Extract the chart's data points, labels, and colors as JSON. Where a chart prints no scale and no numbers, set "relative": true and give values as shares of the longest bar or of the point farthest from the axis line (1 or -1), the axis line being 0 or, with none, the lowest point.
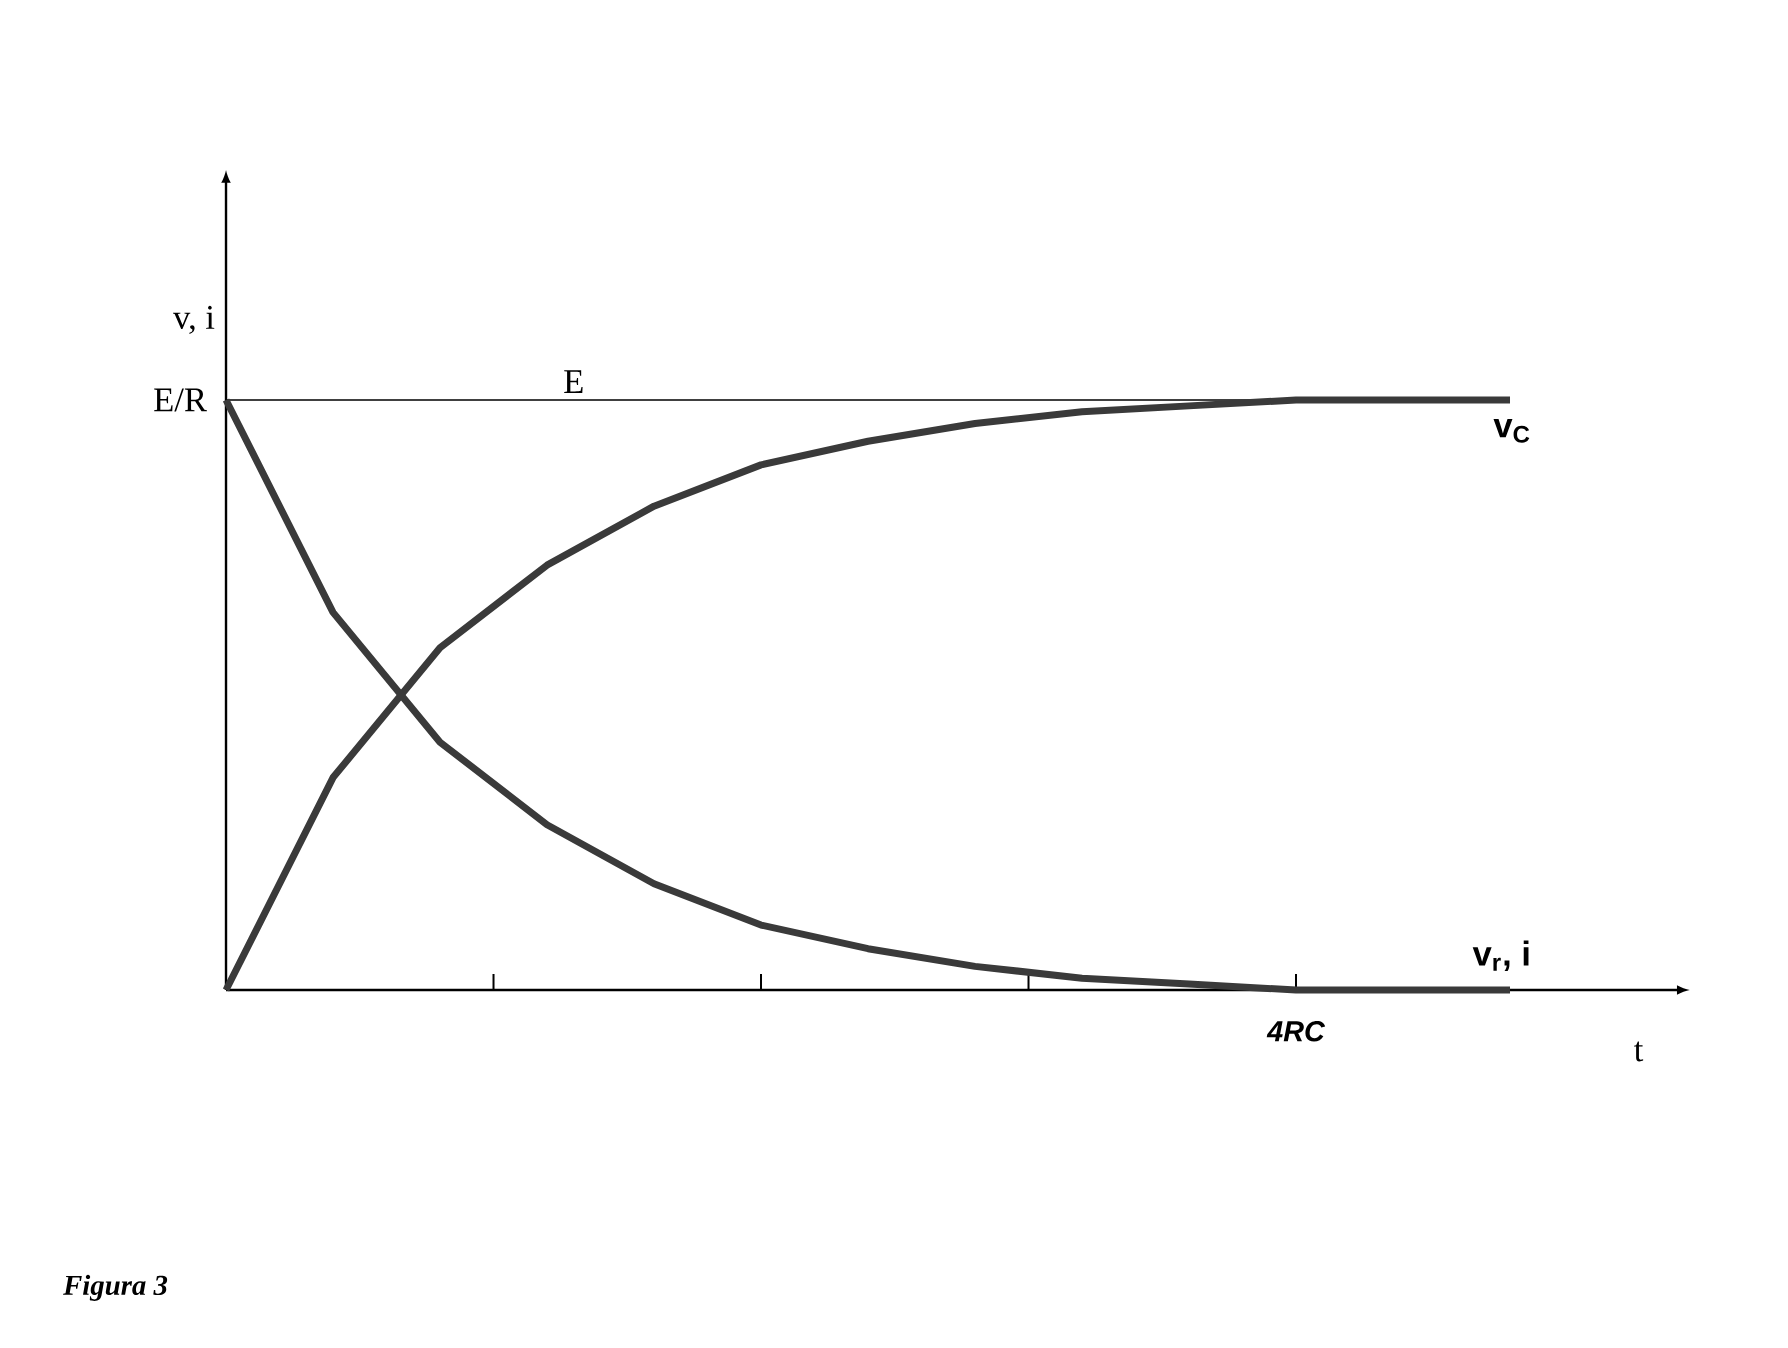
{
  "chart_data": {
    "type": "line",
    "relative": true,
    "xlabel": "t",
    "ylabel": "v, i",
    "grid": false,
    "marker": "none",
    "line_style": "solid",
    "categories": [
      null,
      null,
      null,
      null,
      null,
      null,
      null,
      null,
      null,
      null,
      null,
      null,
      null
    ],
    "series": [
      {
        "name": "v$_{C}$",
        "color": "#3a3a3a",
        "values": [
          0,
          0.36,
          0.58,
          0.72,
          0.82,
          0.89,
          0.93,
          0.96,
          0.98,
          0.99,
          1.0,
          1.0,
          1.0
        ]
      },
      {
        "name": "v$_{r}$, i",
        "color": "#3a3a3a",
        "values": [
          1,
          0.64,
          0.42,
          0.28,
          0.18,
          0.11,
          0.07,
          0.04,
          0.02,
          0.01,
          0,
          0,
          0
        ]
      }
    ],
    "ref_lines": [
      {
        "axis": "y",
        "value": 1,
        "label": "E",
        "color": "#000000"
      }
    ],
    "annotations": [
      "E/R",
      "4RC",
      "Figura 3"
    ]
  }
}
